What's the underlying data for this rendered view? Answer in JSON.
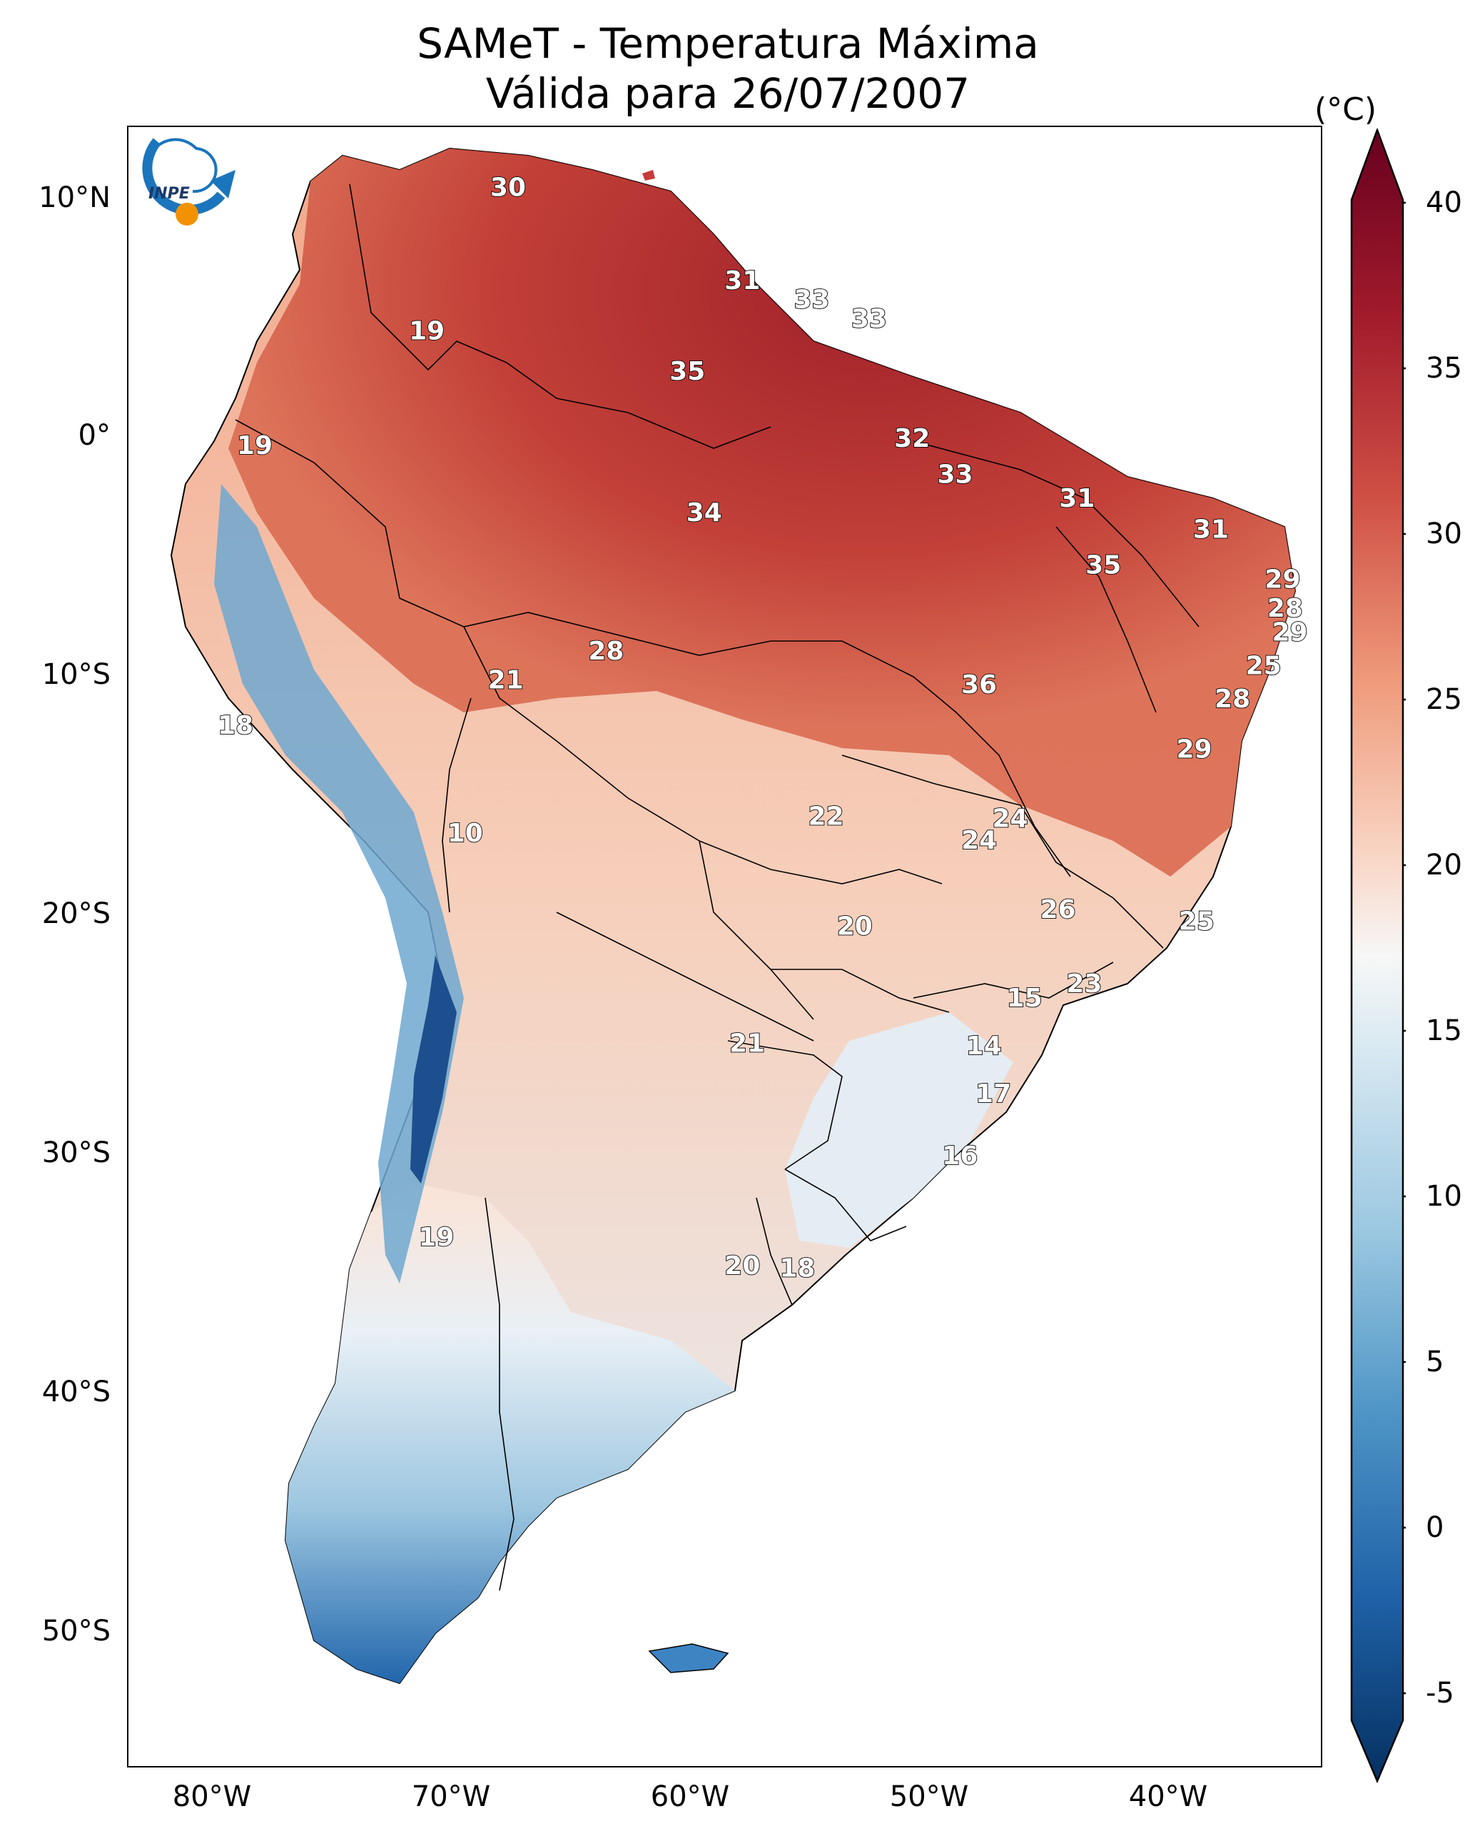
{
  "title_line1": "SAMeT - Temperatura Máxima",
  "title_line2": "Válida para 26/07/2007",
  "colorbar": {
    "unit": "(°C)",
    "ticks": [
      "40",
      "35",
      "30",
      "25",
      "20",
      "15",
      "10",
      "5",
      "0",
      "-5"
    ],
    "range": [
      -5,
      40
    ],
    "colormap": "RdBu_r",
    "colors": {
      "low": "#0b3d7a",
      "mid": "#f7f7f7",
      "high": "#6e0a1d"
    }
  },
  "axes": {
    "lat_ticks": [
      "10°N",
      "0°",
      "10°S",
      "20°S",
      "30°S",
      "40°S",
      "50°S"
    ],
    "lon_ticks": [
      "80°W",
      "70°W",
      "60°W",
      "50°W",
      "40°W"
    ]
  },
  "contour_labels": [
    {
      "lon": -67.7,
      "lat": 10.5,
      "text": "30"
    },
    {
      "lon": -57.9,
      "lat": 6.6,
      "text": "31"
    },
    {
      "lon": -55.0,
      "lat": 5.8,
      "text": "33"
    },
    {
      "lon": -52.6,
      "lat": 5.0,
      "text": "33"
    },
    {
      "lon": -71.1,
      "lat": 4.5,
      "text": "19"
    },
    {
      "lon": -60.2,
      "lat": 2.8,
      "text": "35"
    },
    {
      "lon": -78.3,
      "lat": -0.3,
      "text": "19"
    },
    {
      "lon": -50.8,
      "lat": 0.0,
      "text": "32"
    },
    {
      "lon": -49.0,
      "lat": -1.5,
      "text": "33"
    },
    {
      "lon": -43.9,
      "lat": -2.5,
      "text": "31"
    },
    {
      "lon": -59.5,
      "lat": -3.1,
      "text": "34"
    },
    {
      "lon": -38.3,
      "lat": -3.8,
      "text": "31"
    },
    {
      "lon": -42.8,
      "lat": -5.3,
      "text": "35"
    },
    {
      "lon": -35.3,
      "lat": -5.9,
      "text": "29"
    },
    {
      "lon": -35.2,
      "lat": -7.1,
      "text": "28"
    },
    {
      "lon": -35.0,
      "lat": -8.1,
      "text": "29"
    },
    {
      "lon": -63.6,
      "lat": -8.9,
      "text": "28"
    },
    {
      "lon": -36.1,
      "lat": -9.5,
      "text": "25"
    },
    {
      "lon": -67.8,
      "lat": -10.1,
      "text": "21"
    },
    {
      "lon": -48.0,
      "lat": -10.3,
      "text": "36"
    },
    {
      "lon": -37.4,
      "lat": -10.9,
      "text": "28"
    },
    {
      "lon": -79.1,
      "lat": -12.0,
      "text": "18"
    },
    {
      "lon": -39.0,
      "lat": -13.0,
      "text": "29"
    },
    {
      "lon": -54.4,
      "lat": -15.8,
      "text": "22"
    },
    {
      "lon": -46.7,
      "lat": -15.9,
      "text": "24"
    },
    {
      "lon": -48.0,
      "lat": -16.8,
      "text": "24"
    },
    {
      "lon": -69.5,
      "lat": -16.5,
      "text": "10"
    },
    {
      "lon": -44.7,
      "lat": -19.7,
      "text": "26"
    },
    {
      "lon": -38.9,
      "lat": -20.2,
      "text": "25"
    },
    {
      "lon": -53.2,
      "lat": -20.4,
      "text": "20"
    },
    {
      "lon": -43.6,
      "lat": -22.8,
      "text": "23"
    },
    {
      "lon": -46.1,
      "lat": -23.4,
      "text": "15"
    },
    {
      "lon": -57.7,
      "lat": -25.3,
      "text": "21"
    },
    {
      "lon": -47.8,
      "lat": -25.4,
      "text": "14"
    },
    {
      "lon": -47.4,
      "lat": -27.4,
      "text": "17"
    },
    {
      "lon": -48.8,
      "lat": -30.0,
      "text": "16"
    },
    {
      "lon": -70.7,
      "lat": -33.4,
      "text": "19"
    },
    {
      "lon": -57.9,
      "lat": -34.6,
      "text": "20"
    },
    {
      "lon": -55.6,
      "lat": -34.7,
      "text": "18"
    }
  ]
}
